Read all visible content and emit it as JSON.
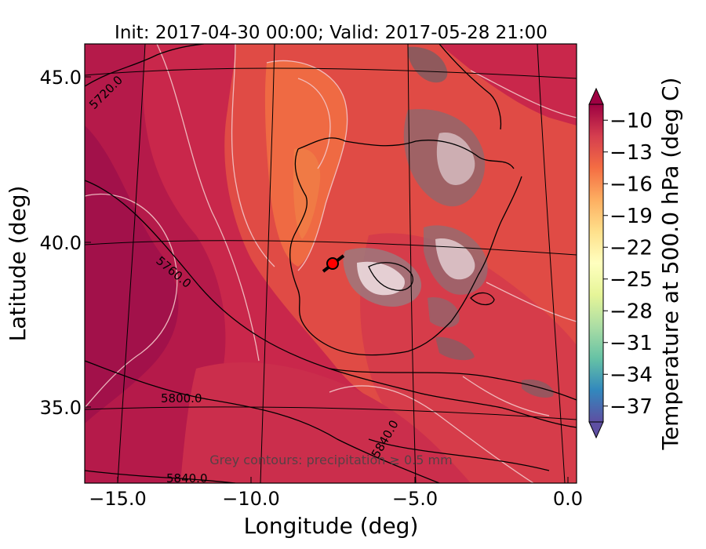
{
  "title": "Init: 2017-04-30 00:00; Valid: 2017-05-28 21:00",
  "x_axis": {
    "label": "Longitude (deg)",
    "ticks": [
      -15.0,
      -10.0,
      -5.0,
      0.0
    ],
    "tick_labels": [
      "−15.0",
      "−10.0",
      "−5.0",
      "0.0"
    ],
    "range": [
      -16.0,
      0.05
    ]
  },
  "y_axis": {
    "label": "Latitude (deg)",
    "ticks": [
      35.0,
      40.0,
      45.0
    ],
    "tick_labels": [
      "35.0",
      "40.0",
      "45.0"
    ],
    "range": [
      32.8,
      46.1
    ]
  },
  "colorbar": {
    "label": "Temperature at 500.0 hPa (deg C)",
    "tick_values": [
      -10,
      -13,
      -16,
      -19,
      -22,
      -25,
      -28,
      -31,
      -34,
      -37
    ],
    "tick_labels": [
      "−10",
      "−13",
      "−16",
      "−19",
      "−22",
      "−25",
      "−28",
      "−31",
      "−34",
      "−37"
    ],
    "range": [
      -38.5,
      -8.5
    ],
    "extend": "both",
    "colormap": "Spectral_r",
    "colors": [
      "#5e4fa2",
      "#3288bd",
      "#66c2a5",
      "#abdda4",
      "#e6f598",
      "#ffffbf",
      "#fee08b",
      "#fdae61",
      "#f46d43",
      "#d53e4f",
      "#9e0142"
    ]
  },
  "geopotential_contours": {
    "color": "#000000",
    "labels": [
      "5720.0",
      "5760.0",
      "5800.0",
      "5840.0",
      "5840.0"
    ]
  },
  "annotation": {
    "text": "Grey contours: precipitation ≥ 0.5 mm"
  },
  "marker": {
    "lon": -7.8,
    "lat": 39.5,
    "color": "#ff0000"
  },
  "field_colors": {
    "dark": "#a2114a",
    "mid": "#c9274b",
    "warm": "#e04b45",
    "orange": "#ef6a43"
  }
}
